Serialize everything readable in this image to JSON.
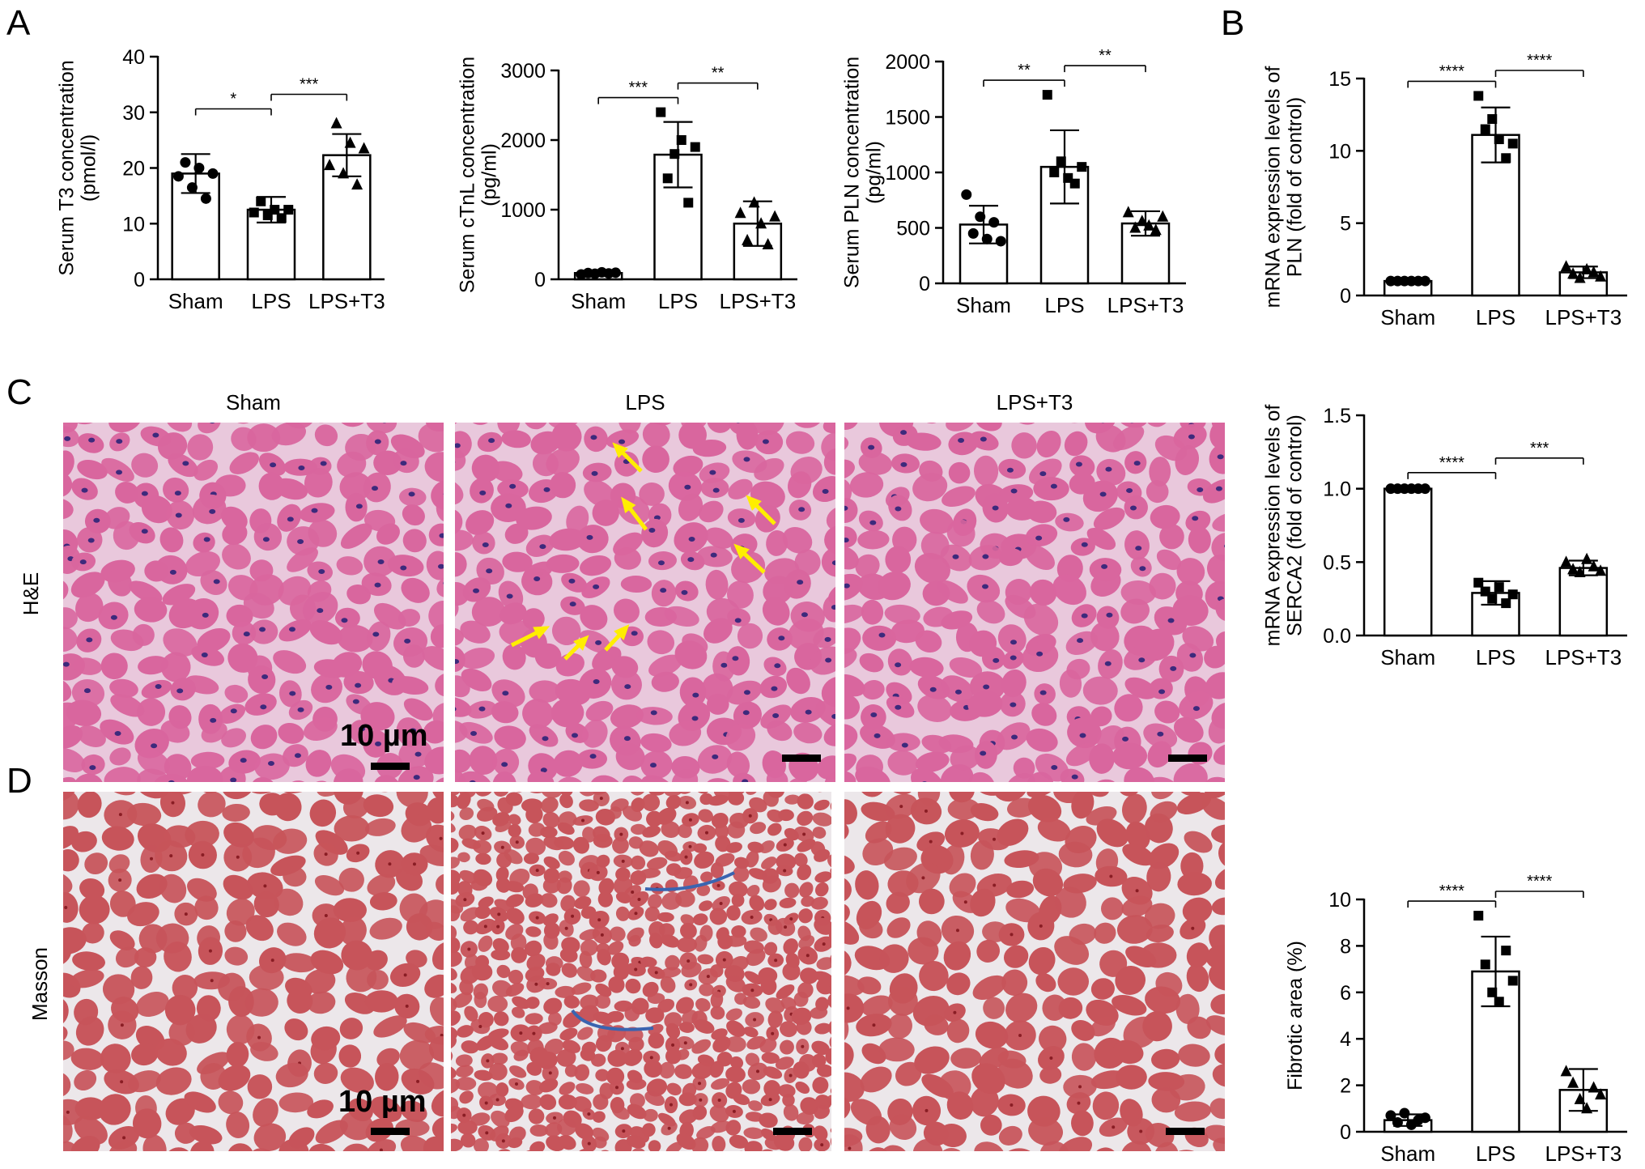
{
  "figure": {
    "panel_letters": [
      "A",
      "B",
      "C",
      "D"
    ],
    "column_titles": [
      "Sham",
      "LPS",
      "LPS+T3"
    ],
    "row_labels": [
      "H&E",
      "Masson"
    ],
    "scale_bar_label": "10 µm"
  },
  "colors": {
    "he_fill": "#d9669e",
    "he_bg": "#e9c8dc",
    "he_nuclei": "#3d2a7c",
    "masson_fill": "#c7545a",
    "masson_bg": "#ece7ea",
    "collagen": "#3a64b0",
    "arrow": "#ffee00"
  },
  "chart_data": [
    {
      "id": "t3",
      "type": "bar",
      "categories": [
        "Sham",
        "LPS",
        "LPS+T3"
      ],
      "values": [
        19,
        12.5,
        22.3
      ],
      "sd": [
        3.5,
        2.3,
        3.8
      ],
      "ylabel": "Serum T3 concentration\n(pmol/l)",
      "ylim": [
        0,
        40
      ],
      "yticks": [
        0,
        10,
        20,
        30,
        40
      ],
      "markers": [
        "circle",
        "square",
        "triangle"
      ],
      "points": [
        [
          18.5,
          21,
          16.5,
          20,
          14.5,
          19
        ],
        [
          12,
          14,
          11.5,
          12.5,
          11,
          12.5
        ],
        [
          20.5,
          28,
          19,
          24.5,
          17,
          23.5
        ]
      ],
      "brackets": [
        {
          "from": 0,
          "to": 1,
          "label": "*"
        },
        {
          "from": 1,
          "to": 2,
          "label": "***"
        }
      ]
    },
    {
      "id": "ctnl",
      "type": "bar",
      "categories": [
        "Sham",
        "LPS",
        "LPS+T3"
      ],
      "values": [
        90,
        1790,
        800
      ],
      "sd": [
        15,
        470,
        320
      ],
      "ylabel": "Serum cTnL concentration\n(pg/ml)",
      "ylim": [
        0,
        3000
      ],
      "yticks": [
        0,
        1000,
        2000,
        3000
      ],
      "markers": [
        "circle",
        "square",
        "triangle"
      ],
      "points": [
        [
          70,
          90,
          80,
          100,
          85,
          95
        ],
        [
          2400,
          1450,
          1800,
          2000,
          1100,
          1900
        ],
        [
          950,
          560,
          1100,
          800,
          500,
          900
        ]
      ],
      "brackets": [
        {
          "from": 0,
          "to": 1,
          "label": "***"
        },
        {
          "from": 1,
          "to": 2,
          "label": "**"
        }
      ]
    },
    {
      "id": "pln_serum",
      "type": "bar",
      "categories": [
        "Sham",
        "LPS",
        "LPS+T3"
      ],
      "values": [
        530,
        1050,
        540
      ],
      "sd": [
        170,
        330,
        110
      ],
      "ylabel": "Serum PLN concentration\n(pg/ml)",
      "ylim": [
        0,
        2000
      ],
      "yticks": [
        0,
        500,
        1000,
        1500,
        2000
      ],
      "markers": [
        "circle",
        "square",
        "triangle"
      ],
      "points": [
        [
          800,
          450,
          600,
          400,
          550,
          380
        ],
        [
          1700,
          1000,
          1100,
          950,
          900,
          1050
        ],
        [
          640,
          500,
          560,
          520,
          480,
          600
        ]
      ],
      "brackets": [
        {
          "from": 0,
          "to": 1,
          "label": "**"
        },
        {
          "from": 1,
          "to": 2,
          "label": "**"
        }
      ]
    },
    {
      "id": "pln_mrna",
      "type": "bar",
      "categories": [
        "Sham",
        "LPS",
        "LPS+T3"
      ],
      "values": [
        1.0,
        11.1,
        1.6
      ],
      "sd": [
        0.05,
        1.9,
        0.4
      ],
      "ylabel": "mRNA expression levels of\nPLN (fold of control)",
      "ylim": [
        0,
        15
      ],
      "yticks": [
        0,
        5,
        10,
        15
      ],
      "markers": [
        "circle",
        "square",
        "triangle"
      ],
      "points": [
        [
          1,
          1,
          1,
          1,
          1,
          1
        ],
        [
          13.8,
          11.5,
          12.2,
          10.8,
          9.5,
          10.5
        ],
        [
          2.0,
          1.5,
          1.2,
          1.8,
          1.6,
          1.3
        ]
      ],
      "brackets": [
        {
          "from": 0,
          "to": 1,
          "label": "****"
        },
        {
          "from": 1,
          "to": 2,
          "label": "****"
        }
      ]
    },
    {
      "id": "serca2_mrna",
      "type": "bar",
      "categories": [
        "Sham",
        "LPS",
        "LPS+T3"
      ],
      "values": [
        1.0,
        0.29,
        0.46
      ],
      "sd": [
        0.01,
        0.08,
        0.05
      ],
      "ylabel": "mRNA expression levels of\nSERCA2 (fold of control)",
      "ylim": [
        0,
        1.5
      ],
      "yticks": [
        0.0,
        0.5,
        1.0,
        1.5
      ],
      "tick_format": "fixed1",
      "markers": [
        "circle",
        "square",
        "triangle"
      ],
      "points": [
        [
          1,
          1,
          1,
          1,
          1,
          1
        ],
        [
          0.36,
          0.3,
          0.25,
          0.33,
          0.22,
          0.28
        ],
        [
          0.5,
          0.45,
          0.43,
          0.52,
          0.47,
          0.44
        ]
      ],
      "brackets": [
        {
          "from": 0,
          "to": 1,
          "label": "****"
        },
        {
          "from": 1,
          "to": 2,
          "label": "***"
        }
      ]
    },
    {
      "id": "fibrotic",
      "type": "bar",
      "categories": [
        "Sham",
        "LPS",
        "LPS+T3"
      ],
      "values": [
        0.5,
        6.9,
        1.8
      ],
      "sd": [
        0.25,
        1.5,
        0.9
      ],
      "ylabel": "Fibrotic area (%)",
      "ylim": [
        0,
        10
      ],
      "yticks": [
        0,
        2,
        4,
        6,
        8,
        10
      ],
      "markers": [
        "circle",
        "square",
        "triangle"
      ],
      "points": [
        [
          0.7,
          0.4,
          0.8,
          0.3,
          0.5,
          0.6
        ],
        [
          9.3,
          7.2,
          6.0,
          5.6,
          7.8,
          6.5
        ],
        [
          2.6,
          2.1,
          1.4,
          1.0,
          1.9,
          1.6
        ]
      ],
      "brackets": [
        {
          "from": 0,
          "to": 1,
          "label": "****"
        },
        {
          "from": 1,
          "to": 2,
          "label": "****"
        }
      ]
    }
  ]
}
